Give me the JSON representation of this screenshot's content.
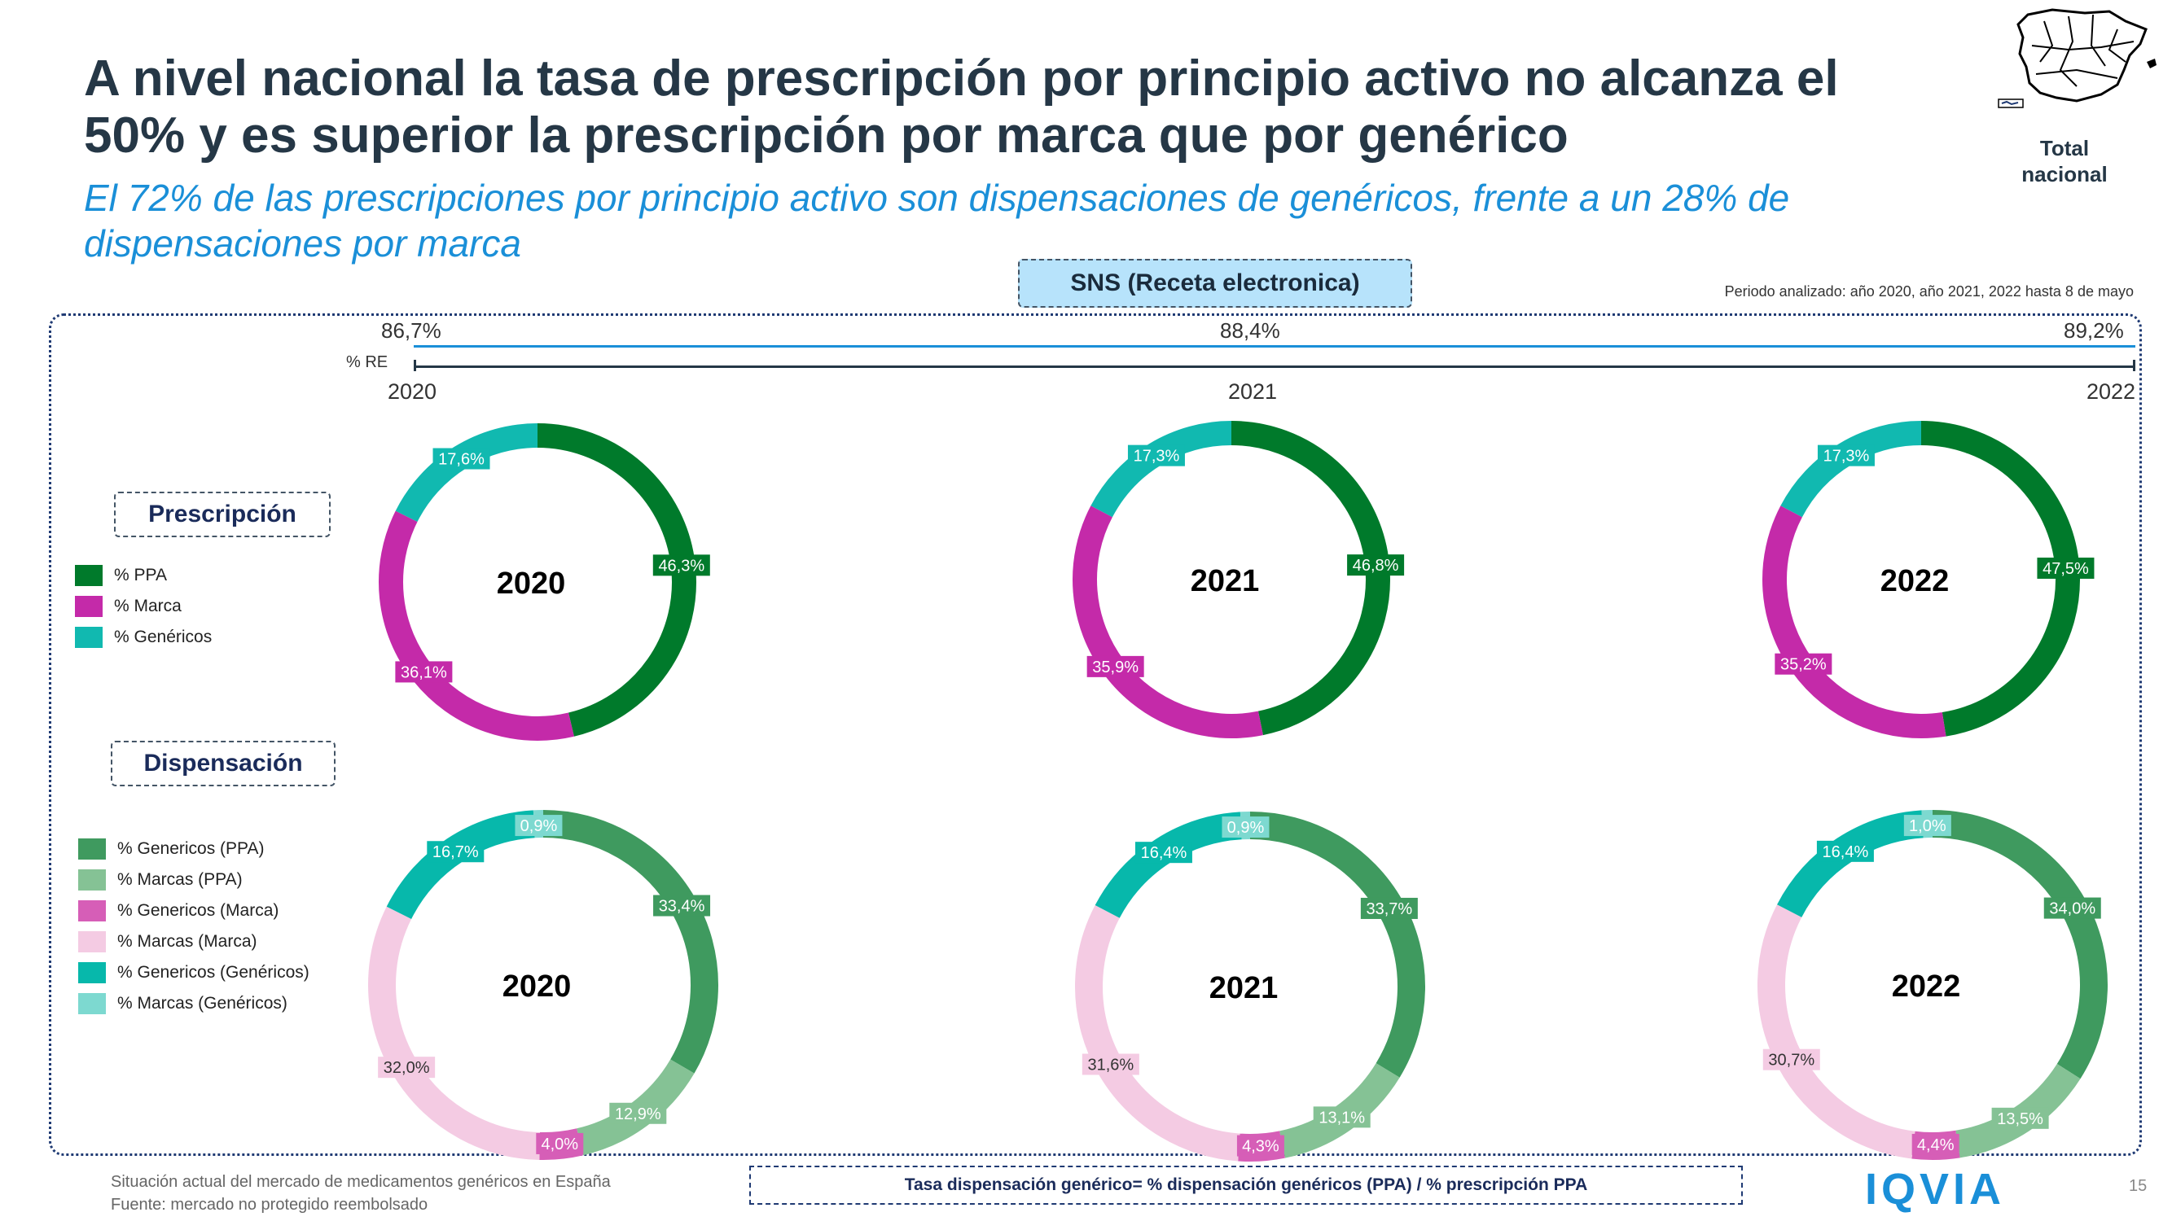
{
  "header": {
    "title_line1": "A nivel nacional la tasa de prescripción por principio activo no alcanza el",
    "title_line2": "50% y es superior la prescripción por marca que por genérico",
    "subtitle_line1": "El 72% de las prescripciones por principio activo son dispensaciones de genéricos, frente a un 28% de",
    "subtitle_line2": "dispensaciones por marca",
    "region_label": "Total nacional"
  },
  "sns_label": "SNS (Receta electronica)",
  "periodo": "Periodo analizado: año 2020, año 2021, 2022 hasta 8 de mayo",
  "timeline": {
    "re_label": "% RE",
    "points": [
      {
        "pct": "86,7%",
        "year": "2020"
      },
      {
        "pct": "88,4%",
        "year": "2021"
      },
      {
        "pct": "89,2%",
        "year": "2022"
      }
    ]
  },
  "sections": {
    "prescripcion": "Prescripción",
    "dispensacion": "Dispensación"
  },
  "legend_prescripcion": [
    {
      "label": "% PPA",
      "color": "#007a2b"
    },
    {
      "label": "% Marca",
      "color": "#c42aa9"
    },
    {
      "label": "% Genéricos",
      "color": "#11b9b0"
    }
  ],
  "legend_dispensacion": [
    {
      "label": "% Genericos (PPA)",
      "color": "#3f9a5f"
    },
    {
      "label": "% Marcas (PPA)",
      "color": "#85c295"
    },
    {
      "label": "% Genericos (Marca)",
      "color": "#d65eb7"
    },
    {
      "label": "% Marcas (Marca)",
      "color": "#f4cbe3"
    },
    {
      "label": "% Genericos (Genéricos)",
      "color": "#07b8ab"
    },
    {
      "label": "% Marcas (Genéricos)",
      "color": "#7dd9d0"
    }
  ],
  "chart_data": [
    {
      "type": "pie",
      "title": "2020",
      "group": "Prescripción",
      "categories": [
        "% PPA",
        "% Marca",
        "% Genéricos"
      ],
      "values": [
        46.3,
        36.1,
        17.6
      ],
      "labels": [
        "46,3%",
        "36,1%",
        "17,6%"
      ],
      "colors": [
        "#007a2b",
        "#c42aa9",
        "#11b9b0"
      ]
    },
    {
      "type": "pie",
      "title": "2021",
      "group": "Prescripción",
      "categories": [
        "% PPA",
        "% Marca",
        "% Genéricos"
      ],
      "values": [
        46.8,
        35.9,
        17.3
      ],
      "labels": [
        "46,8%",
        "35,9%",
        "17,3%"
      ],
      "colors": [
        "#007a2b",
        "#c42aa9",
        "#11b9b0"
      ]
    },
    {
      "type": "pie",
      "title": "2022",
      "group": "Prescripción",
      "categories": [
        "% PPA",
        "% Marca",
        "% Genéricos"
      ],
      "values": [
        47.5,
        35.2,
        17.3
      ],
      "labels": [
        "47,5%",
        "35,2%",
        "17,3%"
      ],
      "colors": [
        "#007a2b",
        "#c42aa9",
        "#11b9b0"
      ]
    },
    {
      "type": "pie",
      "title": "2020",
      "group": "Dispensación",
      "categories": [
        "% Genericos (PPA)",
        "% Marcas (PPA)",
        "% Genericos (Marca)",
        "% Marcas (Marca)",
        "% Genericos (Genéricos)",
        "% Marcas (Genéricos)"
      ],
      "values": [
        33.4,
        12.9,
        4.0,
        32.0,
        16.7,
        0.9
      ],
      "labels": [
        "33,4%",
        "12,9%",
        "4,0%",
        "32,0%",
        "16,7%",
        "0,9%"
      ],
      "colors": [
        "#3f9a5f",
        "#85c295",
        "#d65eb7",
        "#f4cbe3",
        "#07b8ab",
        "#7dd9d0"
      ]
    },
    {
      "type": "pie",
      "title": "2021",
      "group": "Dispensación",
      "categories": [
        "% Genericos (PPA)",
        "% Marcas (PPA)",
        "% Genericos (Marca)",
        "% Marcas (Marca)",
        "% Genericos (Genéricos)",
        "% Marcas (Genéricos)"
      ],
      "values": [
        33.7,
        13.1,
        4.3,
        31.6,
        16.4,
        0.9
      ],
      "labels": [
        "33,7%",
        "13,1%",
        "4,3%",
        "31,6%",
        "16,4%",
        "0,9%"
      ],
      "colors": [
        "#3f9a5f",
        "#85c295",
        "#d65eb7",
        "#f4cbe3",
        "#07b8ab",
        "#7dd9d0"
      ]
    },
    {
      "type": "pie",
      "title": "2022",
      "group": "Dispensación",
      "categories": [
        "% Genericos (PPA)",
        "% Marcas (PPA)",
        "% Genericos (Marca)",
        "% Marcas (Marca)",
        "% Genericos (Genéricos)",
        "% Marcas (Genéricos)"
      ],
      "values": [
        34.0,
        13.5,
        4.4,
        30.7,
        16.4,
        1.0
      ],
      "labels": [
        "34,0%",
        "13,5%",
        "4,4%",
        "30,7%",
        "16,4%",
        "1,0%"
      ],
      "colors": [
        "#3f9a5f",
        "#85c295",
        "#d65eb7",
        "#f4cbe3",
        "#07b8ab",
        "#7dd9d0"
      ]
    }
  ],
  "footer": {
    "line1": "Situación actual del mercado de medicamentos genéricos en España",
    "line2": "Fuente: mercado no protegido reembolsado",
    "formula": "Tasa dispensación genérico= % dispensación genéricos (PPA) / % prescripción PPA",
    "brand": "IQVIA",
    "page": "15"
  }
}
